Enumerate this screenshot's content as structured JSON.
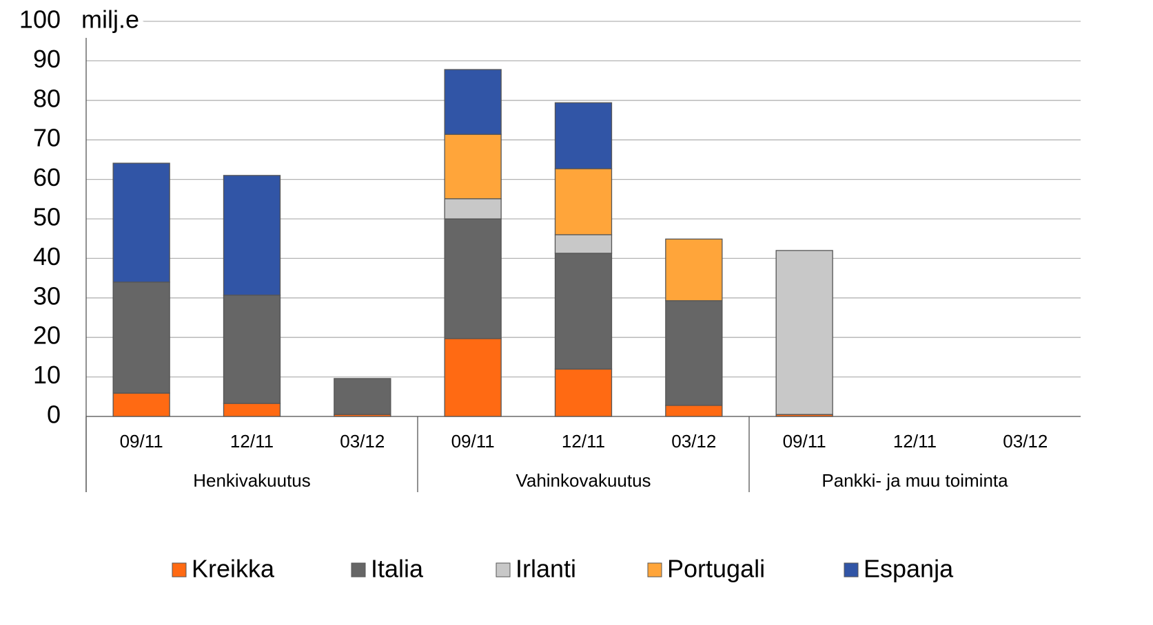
{
  "chart_data": {
    "type": "stacked_bar",
    "y_label": "milj.e",
    "categories": [
      "09/11",
      "12/11",
      "03/12",
      "09/11",
      "12/11",
      "03/12",
      "09/11",
      "12/11",
      "03/12"
    ],
    "groups": [
      "Henkivakuutus",
      "Vahinkovakuutus",
      "Pankki- ja muu toiminta"
    ],
    "series": [
      {
        "name": "Kreikka",
        "color": "#ff6a13",
        "values": [
          5.9,
          3.3,
          0.5,
          19.7,
          12.0,
          2.8,
          0.5,
          0,
          0
        ]
      },
      {
        "name": "Italia",
        "color": "#666666",
        "values": [
          28.1,
          27.4,
          9.1,
          30.3,
          29.3,
          26.5,
          0,
          0,
          0
        ]
      },
      {
        "name": "Irlanti",
        "color": "#c8c8c8",
        "values": [
          0,
          0,
          0,
          5.1,
          4.7,
          0,
          41.5,
          0,
          0
        ]
      },
      {
        "name": "Portugali",
        "color": "#ffa53a",
        "values": [
          0,
          0,
          0,
          16.3,
          16.7,
          15.6,
          0,
          0,
          0
        ]
      },
      {
        "name": "Espanja",
        "color": "#3155a6",
        "values": [
          30.1,
          30.3,
          0,
          16.4,
          16.7,
          0,
          0,
          0,
          0
        ]
      }
    ],
    "ylim": [
      0,
      100
    ],
    "yticks": [
      0,
      10,
      20,
      30,
      40,
      50,
      60,
      70,
      80,
      90,
      100
    ],
    "grid": true,
    "legend": "bottom"
  }
}
